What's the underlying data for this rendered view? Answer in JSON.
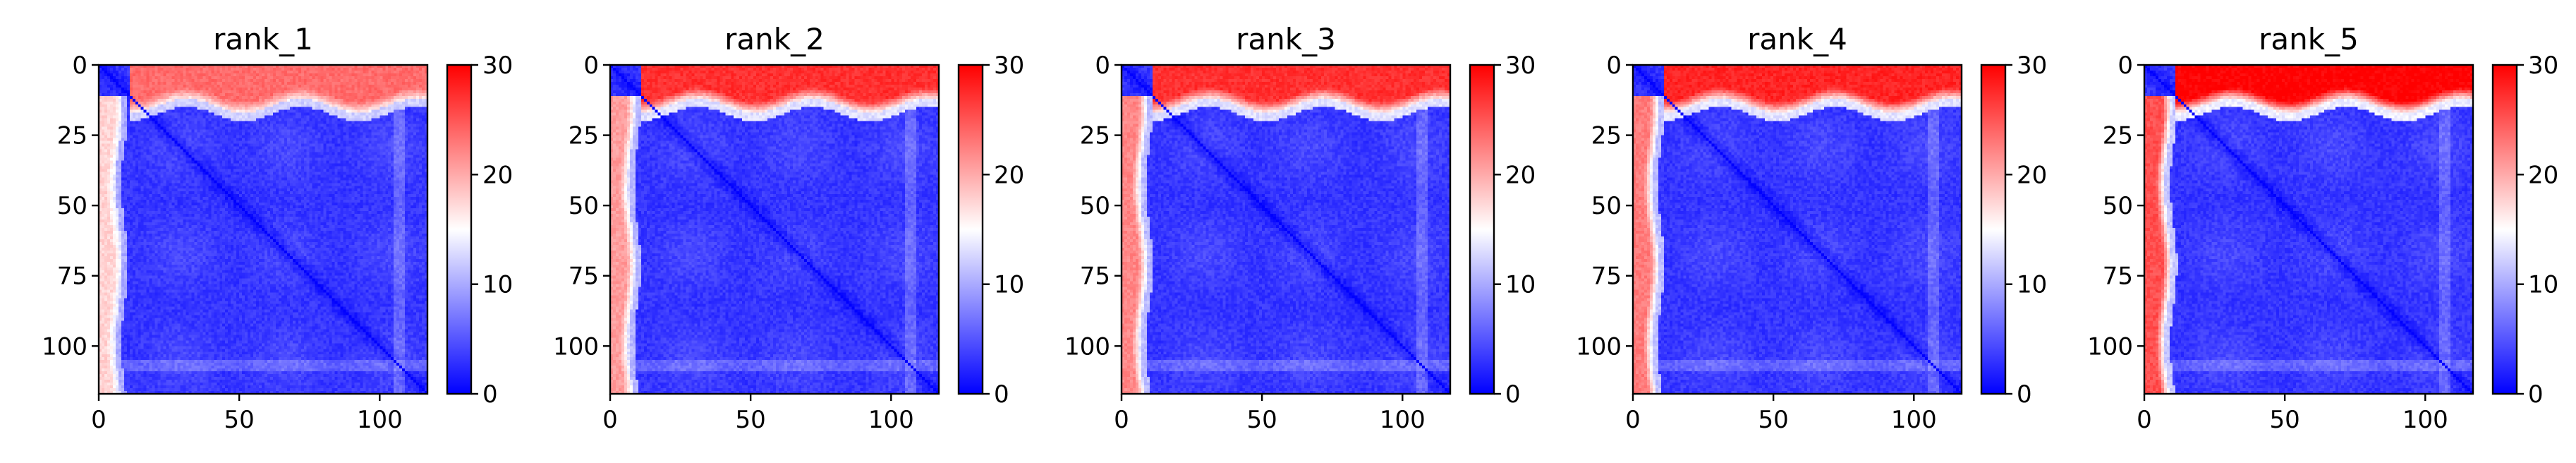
{
  "chart_data": {
    "type": "heatmap",
    "colormap": {
      "name": "bwr",
      "low": "#0000ff",
      "mid": "#ffffff",
      "high": "#ff0000"
    },
    "color_range": [
      0,
      30
    ],
    "matrix_size": 117,
    "xlim": [
      0,
      117
    ],
    "ylim": [
      117,
      0
    ],
    "x_ticks": [
      0,
      50,
      100
    ],
    "y_ticks": [
      0,
      25,
      50,
      75,
      100
    ],
    "colorbar_ticks": [
      0,
      10,
      20,
      30
    ],
    "grid": false,
    "panels": [
      {
        "title": "rank_1",
        "top_band": 0.55,
        "left_band": 0.35
      },
      {
        "title": "rank_2",
        "top_band": 0.8,
        "left_band": 0.6
      },
      {
        "title": "rank_3",
        "top_band": 0.8,
        "left_band": 0.7
      },
      {
        "title": "rank_4",
        "top_band": 0.85,
        "left_band": 0.75
      },
      {
        "title": "rank_5",
        "top_band": 1.0,
        "left_band": 0.95
      }
    ]
  }
}
